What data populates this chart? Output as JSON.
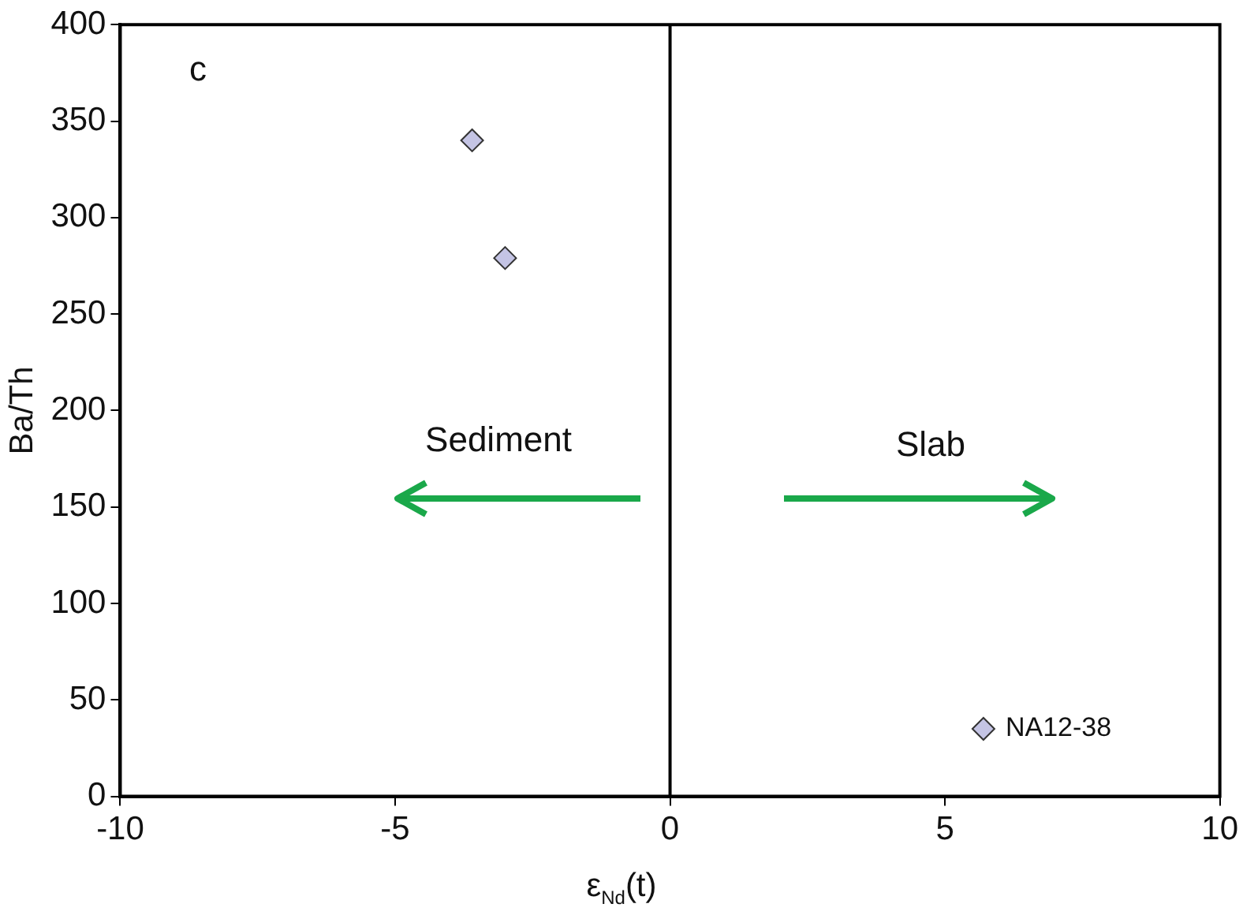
{
  "chart_data": {
    "type": "scatter",
    "xlabel": "ε$_{Nd}$(t)",
    "ylabel": "Ba/Th",
    "x": [
      -3.6,
      -3.0,
      5.7
    ],
    "values": [
      340,
      279,
      35
    ],
    "color": "#c4c4e4",
    "marker": "diamond",
    "grid": false,
    "legend": false,
    "xlim": [
      -10,
      10
    ],
    "xticks": [
      -10,
      -5,
      0,
      5,
      10
    ],
    "ylim": [
      0,
      400
    ],
    "yticks": [
      0,
      50,
      100,
      150,
      200,
      250,
      300,
      350,
      400
    ],
    "ref_lines": [
      {
        "axis": "x",
        "value": 0,
        "color": "#000000"
      }
    ],
    "annotations": [
      "c",
      "Sediment",
      "Slab",
      {
        "text": "NA12-38",
        "x": 5.7,
        "y": 35
      }
    ]
  }
}
